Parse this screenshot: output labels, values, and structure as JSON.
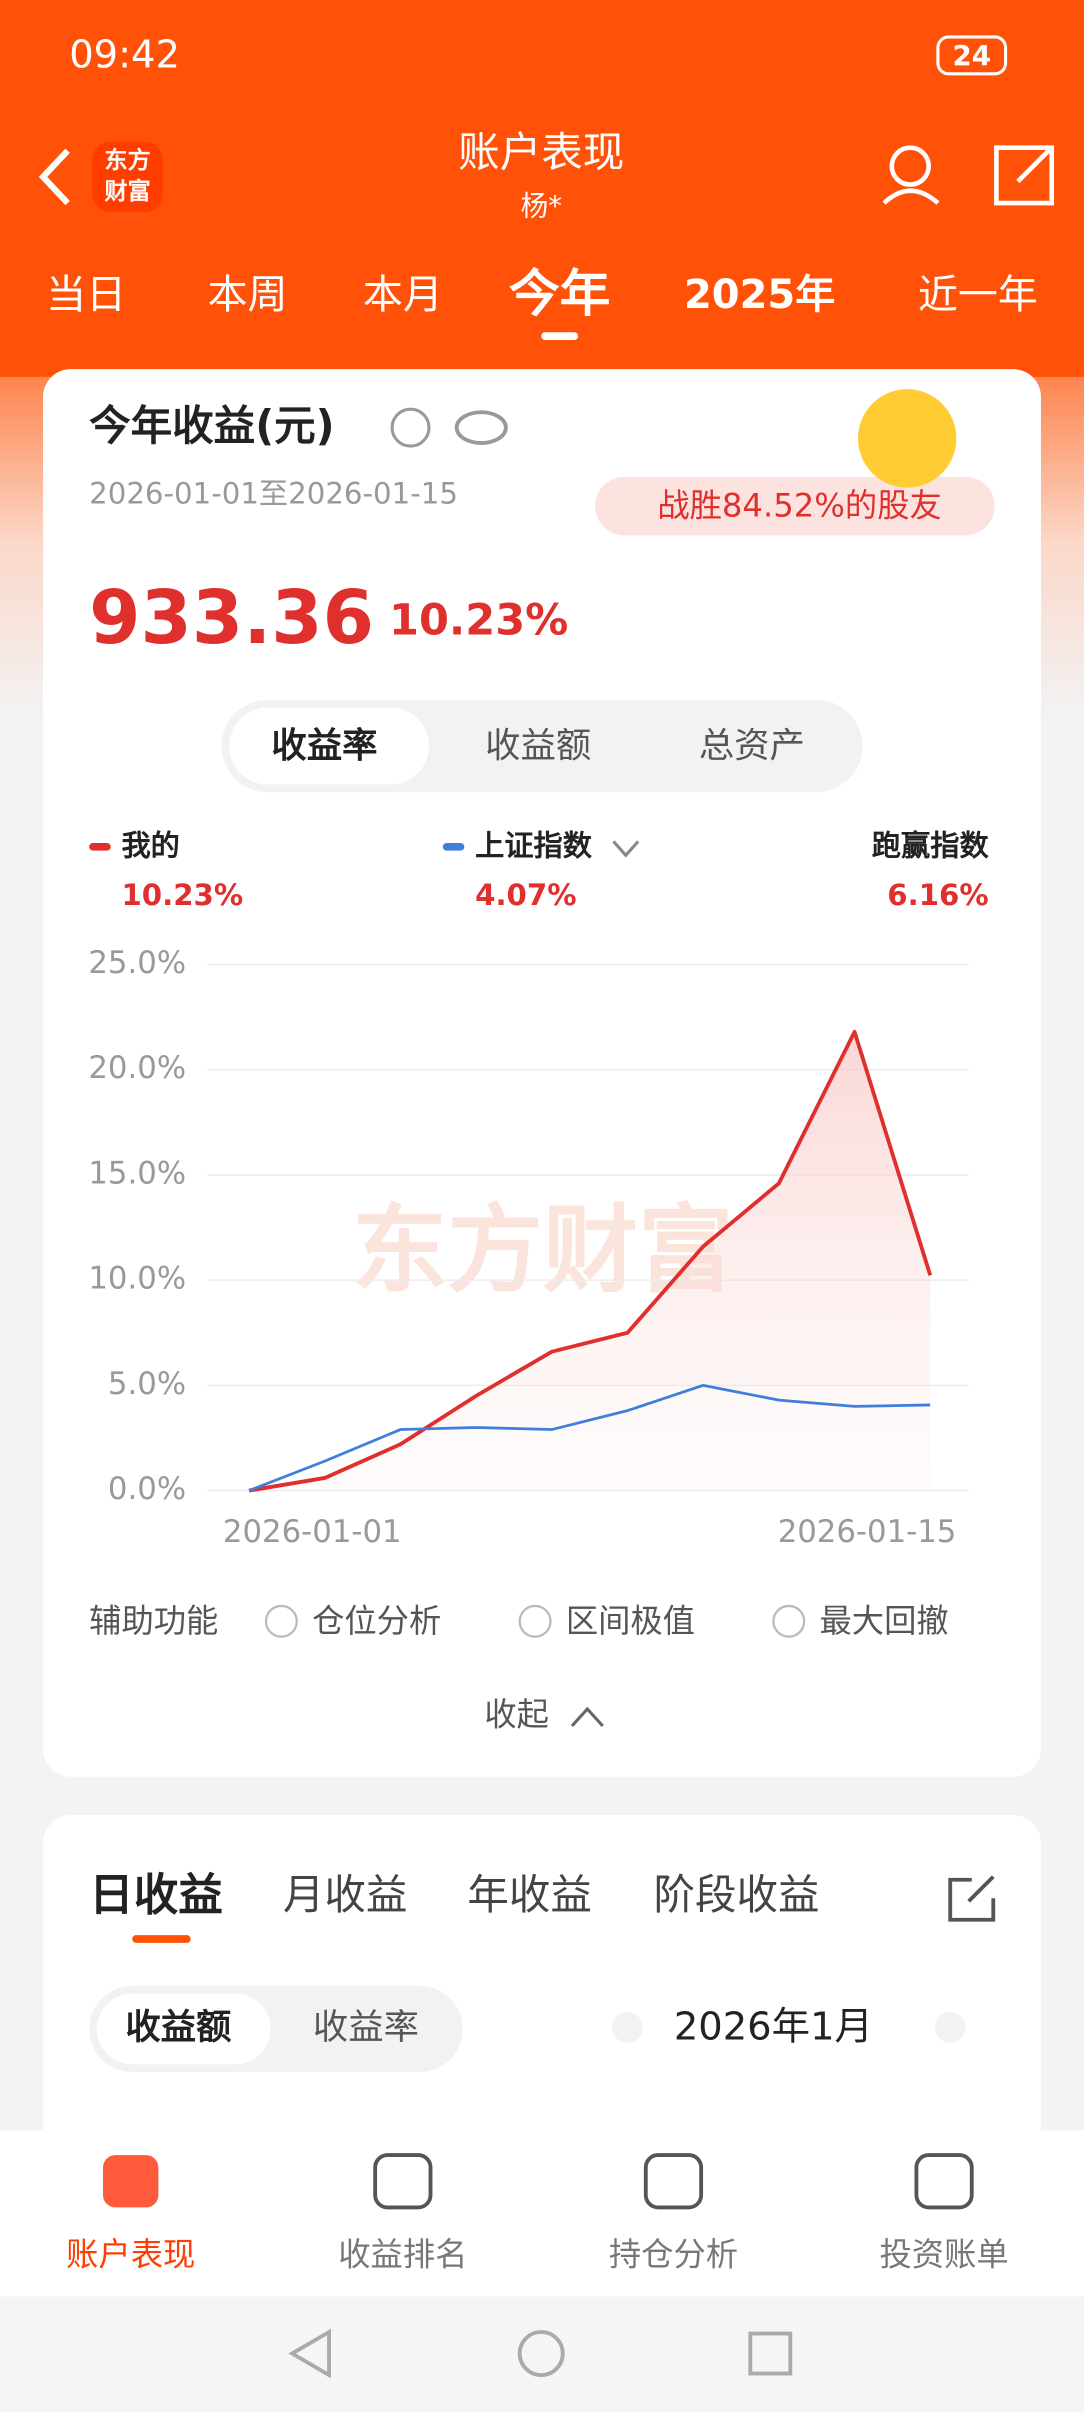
{
  "status_bar": {
    "time": "09:42",
    "battery": "24"
  },
  "header": {
    "logo": [
      "东方",
      "财富"
    ],
    "title": "账户表现",
    "subtitle": "杨*"
  },
  "period_tabs": {
    "items": [
      "当日",
      "本周",
      "本月",
      "今年",
      "2025年",
      "近一年"
    ],
    "active": 3
  },
  "summary": {
    "title": "今年收益(元)",
    "date_range": "2026-01-01至2026-01-15",
    "rank_badge": "战胜84.52%的股友",
    "profit": "933.36",
    "rate": "10.23%"
  },
  "chart_tabs": {
    "items": [
      "收益率",
      "收益额",
      "总资产"
    ],
    "active": 0
  },
  "chart_data": {
    "type": "line",
    "categories": [
      "2026-01-01",
      null,
      null,
      null,
      null,
      null,
      null,
      null,
      null,
      "2026-01-15"
    ],
    "series": [
      {
        "name": "我的",
        "color": "#e0302d",
        "legend_value": "10.23%",
        "values": [
          0,
          0.6,
          2.2,
          4.5,
          6.6,
          7.5,
          11.6,
          14.6,
          21.8,
          10.23
        ]
      },
      {
        "name": "上证指数",
        "color": "#3f7fdc",
        "legend_value": "4.07%",
        "values": [
          0,
          1.4,
          2.9,
          3.0,
          2.9,
          3.8,
          5.0,
          4.3,
          4.0,
          4.07
        ]
      }
    ],
    "excess_label": "跑赢指数",
    "excess_value": "6.16%",
    "watermark": "东方财富",
    "ylim": [
      0,
      25
    ],
    "yticks": [
      {
        "value": 0,
        "label": "0.0%"
      },
      {
        "value": 5,
        "label": "5.0%"
      },
      {
        "value": 10,
        "label": "10.0%"
      },
      {
        "value": 15,
        "label": "15.0%"
      },
      {
        "value": 20,
        "label": "20.0%"
      },
      {
        "value": 25,
        "label": "25.0%"
      }
    ],
    "grid": true
  },
  "aux": {
    "label": "辅助功能",
    "options": [
      "仓位分析",
      "区间极值",
      "最大回撤"
    ],
    "collapse": "收起"
  },
  "returns": {
    "tabs": [
      "日收益",
      "月收益",
      "年收益",
      "阶段收益"
    ],
    "active": 0,
    "toggle": [
      "收益额",
      "收益率"
    ],
    "month": "2026年1月"
  },
  "bottom_nav": {
    "items": [
      "账户表现",
      "收益排名",
      "持仓分析",
      "投资账单"
    ],
    "active": 0
  }
}
